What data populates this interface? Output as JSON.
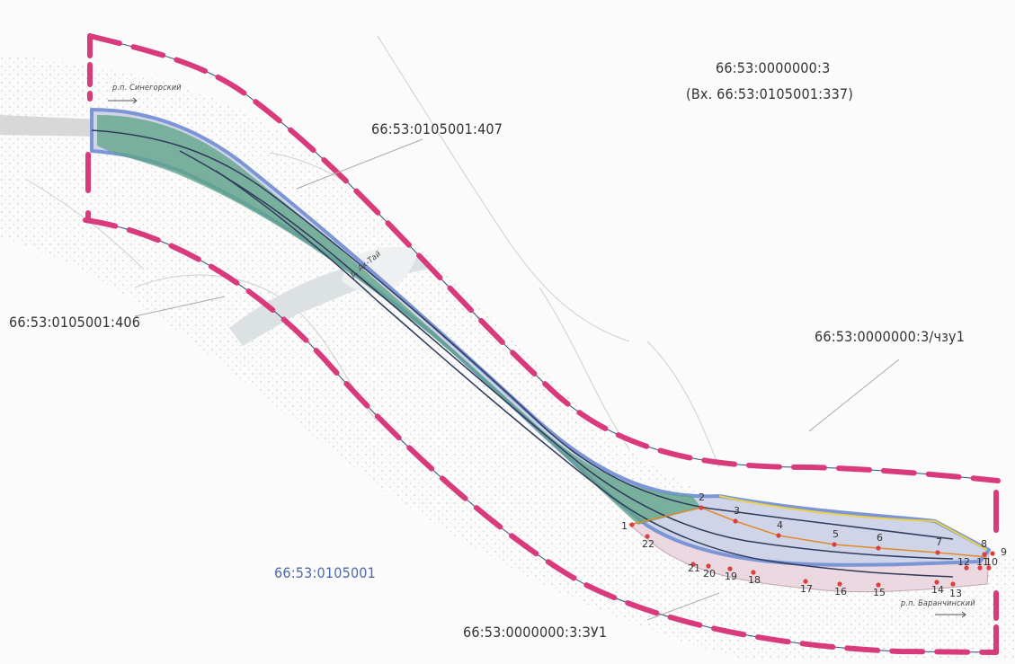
{
  "labels": {
    "parcel_main": "66:53:0000000:3",
    "parcel_main_sub": "(Вх. 66:53:0105001:337)",
    "parcel_407": "66:53:0105001:407",
    "parcel_406": "66:53:0105001:406",
    "parcel_chzu1": "66:53:0000000:3/чзу1",
    "block": "66:53:0105001",
    "parcel_zu1": "66:53:0000000:3:ЗУ1",
    "river_sinegorsky": "р.п. Синегорский",
    "river_ak_tai": "р. Ак-Тай",
    "river_baranchinsky": "р.п. Баранчинский"
  },
  "points": [
    "1",
    "2",
    "3",
    "4",
    "5",
    "6",
    "7",
    "8",
    "9",
    "10",
    "11",
    "12",
    "13",
    "14",
    "15",
    "16",
    "17",
    "18",
    "19",
    "20",
    "21",
    "22"
  ],
  "colors": {
    "boundary_dash": "#d83a7c",
    "corridor_fill": "#5fa488",
    "corridor_outline": "#7b95d6",
    "zone_fill": "#e9d2dc",
    "point": "#d94040",
    "orange_line": "#e08a2a",
    "yellow_line": "#e8d24a"
  }
}
